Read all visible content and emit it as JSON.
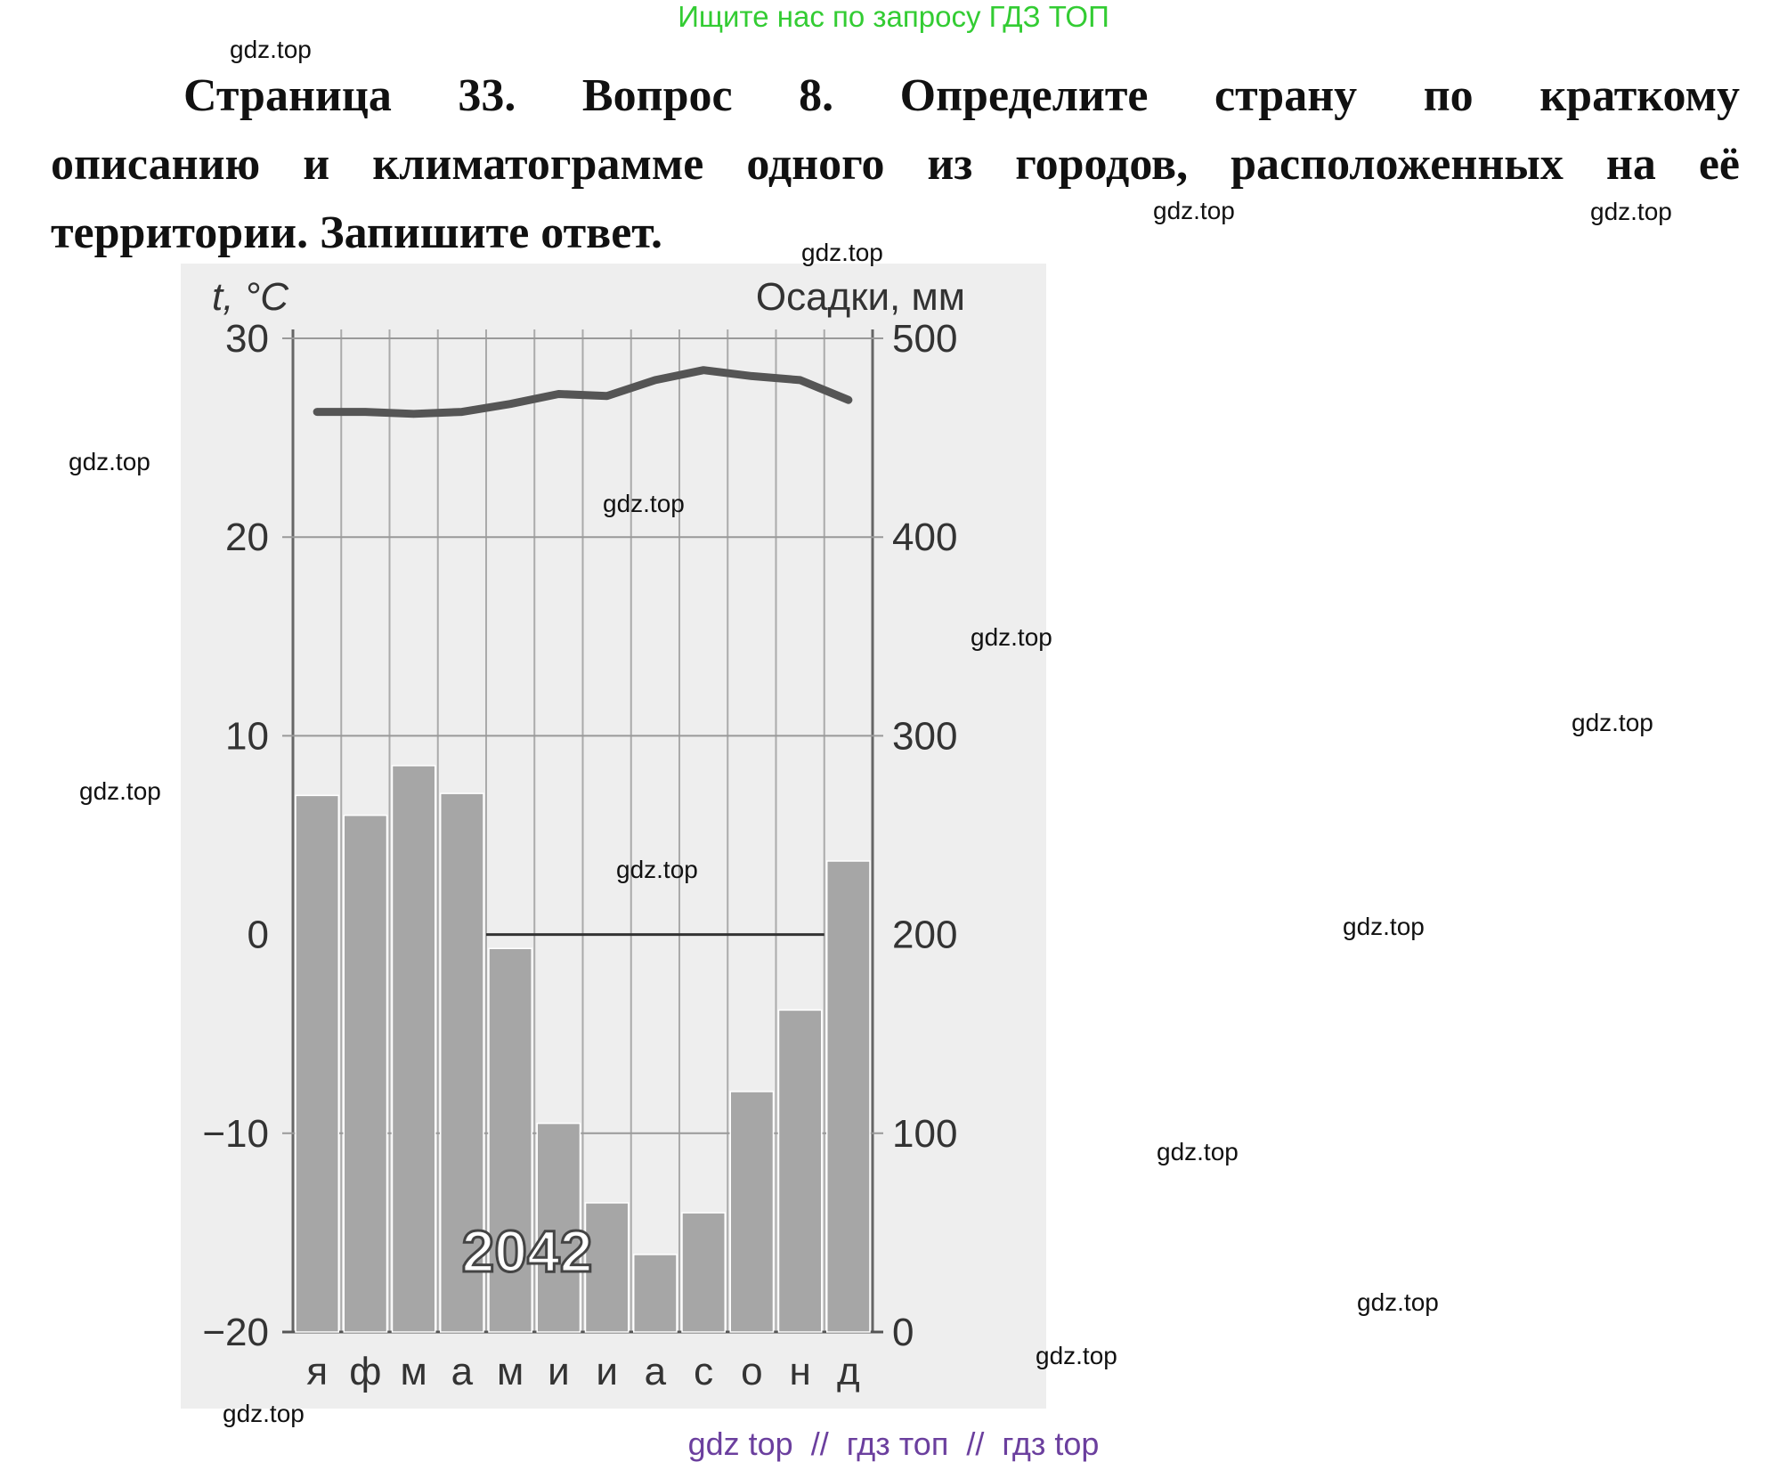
{
  "banner": "Ищите нас по запросу ГДЗ ТОП",
  "question": {
    "line1": "Страница 33. Вопрос 8.     Определите страну по краткому",
    "line2": "описанию и климатограмме одного из городов, расположенных на её",
    "line3": "территории. Запишите ответ."
  },
  "watermark": "gdz.top",
  "footer": "gdz top  //  гдз топ  //  гдз top",
  "chart_data": {
    "type": "bar+line",
    "title": "",
    "left_axis_label": "t, °C",
    "right_axis_label": "Осадки, мм",
    "left_ylim": [
      -20,
      30
    ],
    "right_ylim": [
      0,
      500
    ],
    "left_ticks": [
      "30",
      "20",
      "10",
      "0",
      "−10",
      "−20"
    ],
    "right_ticks": [
      "500",
      "400",
      "300",
      "200",
      "100",
      "0"
    ],
    "categories": [
      "я",
      "ф",
      "м",
      "а",
      "м",
      "и",
      "и",
      "а",
      "с",
      "о",
      "н",
      "д"
    ],
    "series": [
      {
        "kind": "bar",
        "axis": "right",
        "values": [
          270,
          260,
          285,
          271,
          193,
          105,
          65,
          39,
          60,
          121,
          162,
          237
        ]
      },
      {
        "kind": "line",
        "axis": "left",
        "values": [
          26.3,
          26.3,
          26.2,
          26.3,
          26.7,
          27.2,
          27.1,
          27.9,
          28.4,
          28.1,
          27.9,
          26.9
        ]
      }
    ],
    "annotation": "2042",
    "grid": true,
    "colors": {
      "bar": "#a6a6a6",
      "line": "#555555",
      "background": "#eeeeee"
    }
  }
}
